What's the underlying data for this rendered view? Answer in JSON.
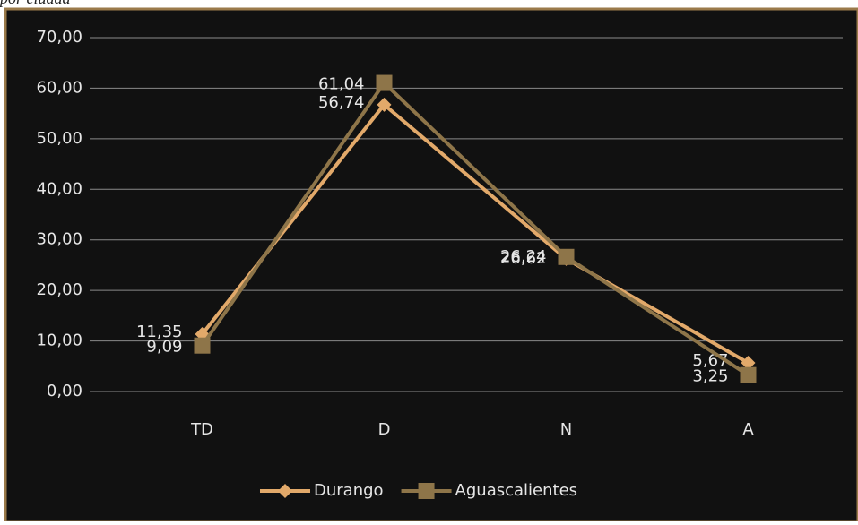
{
  "caption": "por ciudad",
  "chart_data": {
    "type": "line",
    "categories": [
      "TD",
      "D",
      "N",
      "A"
    ],
    "series": [
      {
        "name": "Durango",
        "color": "#e2a96a",
        "marker": "diamond",
        "values": [
          11.35,
          56.74,
          26.24,
          5.67
        ],
        "value_labels": [
          "11,35",
          "56,74",
          "26,24",
          "5,67"
        ]
      },
      {
        "name": "Aguascalientes",
        "color": "#8e7549",
        "marker": "square",
        "values": [
          9.09,
          61.04,
          26.62,
          3.25
        ],
        "value_labels": [
          "9,09",
          "61,04",
          "26,62",
          "3,25"
        ]
      }
    ],
    "ylim": [
      0,
      70
    ],
    "yticks": [
      {
        "value": 0,
        "label": "0,00"
      },
      {
        "value": 10,
        "label": "10,00"
      },
      {
        "value": 20,
        "label": "20,00"
      },
      {
        "value": 30,
        "label": "30,00"
      },
      {
        "value": 40,
        "label": "40,00"
      },
      {
        "value": 50,
        "label": "50,00"
      },
      {
        "value": 60,
        "label": "60,00"
      },
      {
        "value": 70,
        "label": "70,00"
      }
    ],
    "grid": true,
    "legend": "bottom"
  }
}
